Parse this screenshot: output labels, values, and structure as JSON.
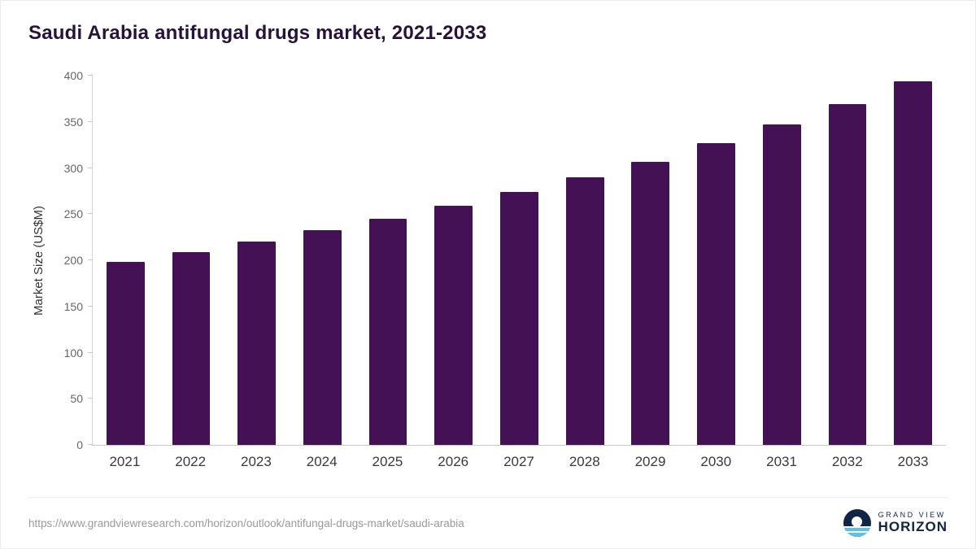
{
  "title": "Saudi Arabia antifungal drugs market, 2021-2033",
  "chart_data": {
    "type": "bar",
    "title": "Saudi Arabia antifungal drugs market, 2021-2033",
    "categories": [
      "2021",
      "2022",
      "2023",
      "2024",
      "2025",
      "2026",
      "2027",
      "2028",
      "2029",
      "2030",
      "2031",
      "2032",
      "2033"
    ],
    "values": [
      198,
      209,
      220,
      233,
      245,
      259,
      274,
      290,
      307,
      327,
      347,
      369,
      394
    ],
    "xlabel": "",
    "ylabel": "Market Size (US$M)",
    "ylim": [
      0,
      400
    ],
    "yticks": [
      0,
      50,
      100,
      150,
      200,
      250,
      300,
      350,
      400
    ],
    "grid": false,
    "legend_position": "none",
    "bar_color": "#441154"
  },
  "footer": {
    "source_url": "https://www.grandviewresearch.com/horizon/outlook/antifungal-drugs-market/saudi-arabia",
    "logo": {
      "line1": "GRAND VIEW",
      "line2": "HORIZON",
      "navy_color": "#0f2543",
      "blue_color": "#5bc2e7"
    }
  }
}
